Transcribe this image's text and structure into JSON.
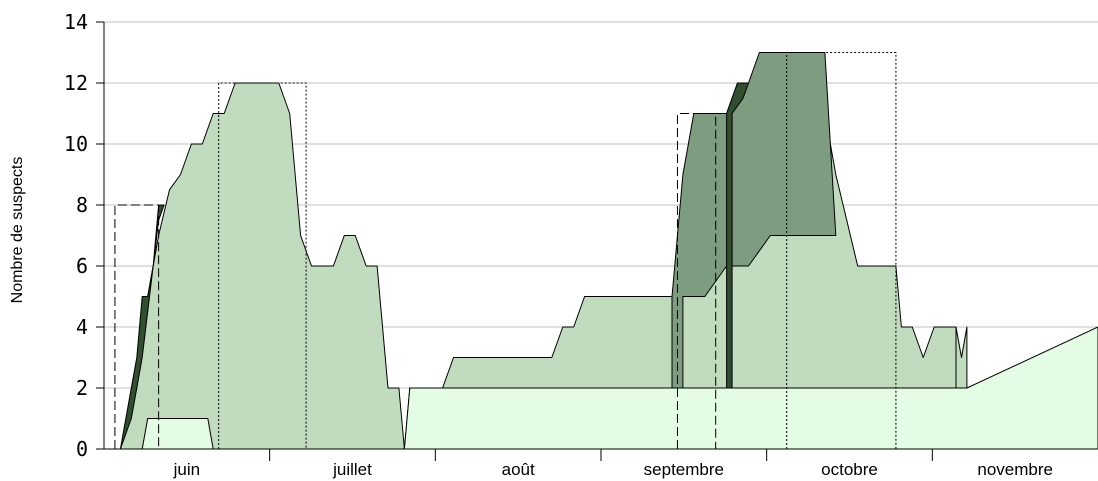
{
  "chart_data": {
    "type": "area",
    "xlabel": "",
    "ylabel": "Nombre de suspects",
    "ylim": [
      0,
      14
    ],
    "xlim": [
      0,
      182
    ],
    "grid": "horizontal",
    "y_ticks": [
      "0",
      "2",
      "4",
      "6",
      "8",
      "10",
      "12",
      "14"
    ],
    "x_categories": [
      "juin",
      "juillet",
      "août",
      "septembre",
      "octobre",
      "novembre"
    ],
    "colors": {
      "lightest": "#e3fce3",
      "light": "#c0dbbd",
      "medium": "#7e9c80",
      "dark": "#2f4f2f",
      "line": "#000000",
      "grid": "#c0c0c0"
    },
    "series": [
      {
        "style": "light",
        "x": [
          3,
          6,
          8,
          10,
          12,
          14,
          16,
          18,
          20,
          22,
          24,
          27,
          30,
          32,
          34,
          36,
          38,
          40,
          42,
          44,
          46,
          48,
          50,
          52,
          54,
          55
        ],
        "y": [
          0,
          2,
          5,
          7,
          8.5,
          9,
          10,
          10,
          11,
          11,
          12,
          12,
          12,
          12,
          11,
          7,
          6,
          6,
          6,
          7,
          7,
          6,
          6,
          2,
          2,
          0
        ]
      },
      {
        "style": "dark",
        "x": [
          3,
          5,
          6,
          7,
          8,
          9,
          10,
          11,
          10,
          9,
          8,
          7,
          6,
          5,
          3
        ],
        "y": [
          0,
          2,
          3,
          5,
          5,
          6,
          8,
          8,
          7.5,
          6,
          4.5,
          3,
          2,
          1,
          0
        ]
      },
      {
        "style": "lightest",
        "x": [
          3,
          7,
          8,
          19,
          20,
          22
        ],
        "y": [
          0,
          0,
          1,
          1,
          0,
          0
        ]
      },
      {
        "style": "light",
        "x": [
          55,
          56,
          80,
          82,
          94,
          96,
          104,
          106,
          110,
          112,
          118,
          130,
          132,
          140,
          142,
          142,
          150,
          152,
          154,
          156,
          157,
          158
        ],
        "y": [
          0,
          2,
          2,
          2,
          2,
          2,
          2,
          2,
          2,
          2,
          2,
          2,
          2,
          2,
          2,
          2,
          2,
          2,
          3,
          4,
          3,
          4
        ]
      },
      {
        "style": "light",
        "x": [
          56,
          62,
          64,
          74,
          76,
          78,
          82,
          84,
          86,
          88,
          106,
          110,
          112,
          115,
          119,
          122,
          126,
          130,
          134,
          138,
          140,
          141,
          145,
          146,
          148,
          150,
          152,
          156
        ],
        "y": [
          2,
          2,
          3,
          3,
          3,
          3,
          3,
          4,
          4,
          5,
          5,
          5,
          6,
          6,
          7,
          7,
          7,
          13,
          9,
          6,
          6,
          6,
          6,
          4,
          4,
          3,
          4,
          4
        ]
      },
      {
        "style": "medium",
        "x": [
          104,
          106,
          108,
          110,
          114,
          116,
          118,
          120,
          122,
          124,
          126,
          130,
          132,
          134,
          130,
          126,
          122,
          118,
          114,
          110,
          106
        ],
        "y": [
          5,
          9,
          11,
          11,
          11,
          12,
          12,
          13,
          13,
          13,
          13,
          13,
          13,
          7,
          7,
          7,
          7,
          6,
          6,
          5,
          5
        ]
      },
      {
        "style": "dark",
        "x": [
          114,
          116,
          118,
          117,
          115
        ],
        "y": [
          11,
          12,
          12,
          11.5,
          11
        ]
      },
      {
        "style": "lightest",
        "x": [
          55,
          56,
          158,
          182,
          182,
          55
        ],
        "y": [
          0,
          2,
          2,
          4,
          0,
          0
        ]
      }
    ],
    "dashed_boxes": [
      {
        "x0": 2,
        "x1": 10,
        "ymax": 8,
        "style": "dashed"
      },
      {
        "x0": 21,
        "x1": 37,
        "ymax": 12,
        "style": "dotted"
      },
      {
        "x0": 105,
        "x1": 112,
        "ymax": 11,
        "style": "dashed"
      },
      {
        "x0": 125,
        "x1": 145,
        "ymax": 13,
        "style": "dotted"
      }
    ]
  }
}
